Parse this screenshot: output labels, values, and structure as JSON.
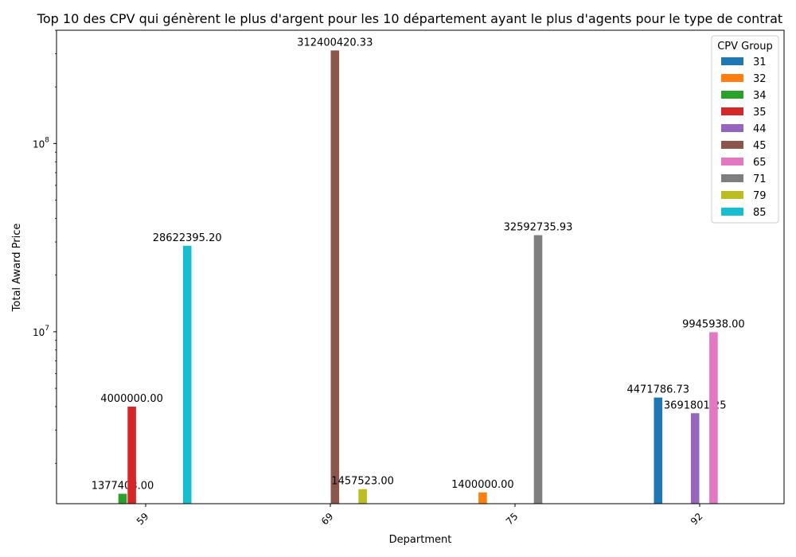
{
  "chart_data": {
    "type": "bar",
    "title": "Top 10 des CPV qui génèrent le plus d'argent pour les 10 département ayant le plus d'agents pour le type de contrat",
    "xlabel": "Department",
    "ylabel": "Total Award Price",
    "yscale": "log",
    "ylim": [
      1220000,
      400000000
    ],
    "ytick_labels": [
      {
        "base": "10",
        "exp": "7",
        "value": 10000000
      },
      {
        "base": "10",
        "exp": "8",
        "value": 100000000
      }
    ],
    "categories": [
      "59",
      "69",
      "75",
      "92"
    ],
    "legend_title": "CPV Group",
    "legend_position": "top-right",
    "series": [
      {
        "name": "31",
        "color": "#1f77b4",
        "values": [
          null,
          null,
          null,
          4471786.73
        ],
        "labels": [
          null,
          null,
          null,
          "4471786.73"
        ]
      },
      {
        "name": "32",
        "color": "#ff7f0e",
        "values": [
          null,
          null,
          1400000.0,
          null
        ],
        "labels": [
          null,
          null,
          "1400000.00",
          null
        ]
      },
      {
        "name": "34",
        "color": "#2ca02c",
        "values": [
          1377403.0,
          null,
          null,
          null
        ],
        "labels": [
          "1377403.00",
          null,
          null,
          null
        ]
      },
      {
        "name": "35",
        "color": "#d62728",
        "values": [
          4000000.0,
          null,
          null,
          null
        ],
        "labels": [
          "4000000.00",
          null,
          null,
          null
        ]
      },
      {
        "name": "44",
        "color": "#9467bd",
        "values": [
          null,
          null,
          null,
          3691801.25
        ],
        "labels": [
          null,
          null,
          null,
          "3691801.25"
        ]
      },
      {
        "name": "45",
        "color": "#8c564b",
        "values": [
          null,
          312400420.33,
          null,
          null
        ],
        "labels": [
          null,
          "312400420.33",
          null,
          null
        ]
      },
      {
        "name": "65",
        "color": "#e377c2",
        "values": [
          null,
          null,
          null,
          9945938.0
        ],
        "labels": [
          null,
          null,
          null,
          "9945938.00"
        ]
      },
      {
        "name": "71",
        "color": "#7f7f7f",
        "values": [
          null,
          null,
          32592735.93,
          null
        ],
        "labels": [
          null,
          null,
          "32592735.93",
          null
        ]
      },
      {
        "name": "79",
        "color": "#bcbd22",
        "values": [
          null,
          1457523.0,
          null,
          null
        ],
        "labels": [
          null,
          "1457523.00",
          null,
          null
        ]
      },
      {
        "name": "85",
        "color": "#17becf",
        "values": [
          28622395.2,
          null,
          null,
          null
        ],
        "labels": [
          "28622395.20",
          null,
          null,
          null
        ]
      }
    ]
  }
}
